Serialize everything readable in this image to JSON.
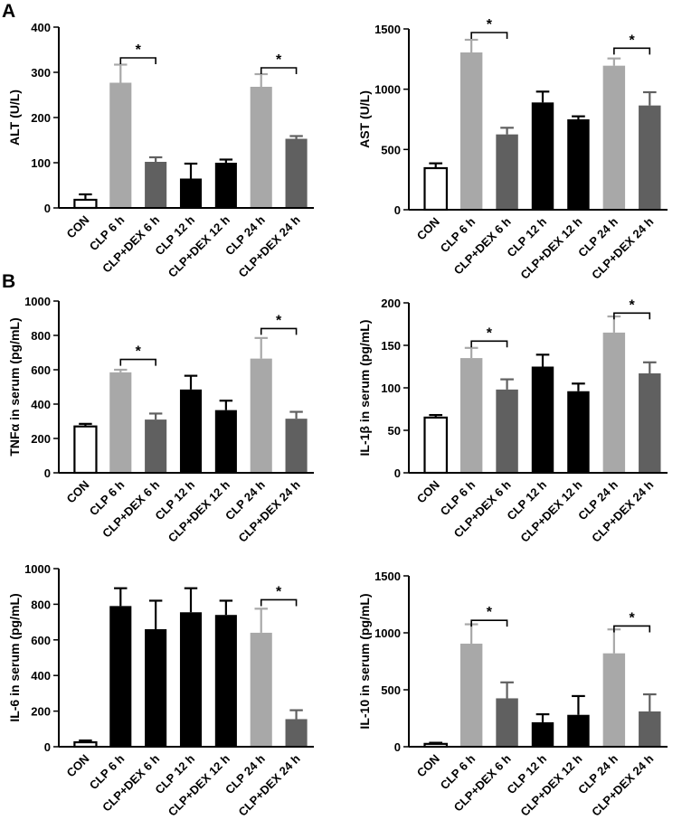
{
  "panels": [
    {
      "id": "A",
      "label": "A"
    },
    {
      "id": "B",
      "label": "B"
    }
  ],
  "chart_data": [
    {
      "type": "bar",
      "panel": "A",
      "ylabel": "ALT (U/L)",
      "ylim": [
        0,
        400
      ],
      "yticks": [
        0,
        100,
        200,
        300,
        400
      ],
      "categories": [
        "CON",
        "CLP 6 h",
        "CLP+DEX 6 h",
        "CLP 12 h",
        "CLP+DEX 12 h",
        "CLP 24 h",
        "CLP+DEX 24 h"
      ],
      "values": [
        18,
        277,
        102,
        65,
        100,
        268,
        153
      ],
      "errors": [
        12,
        40,
        10,
        33,
        7,
        28,
        6
      ],
      "colors": [
        "#ffffff",
        "#a8a8a8",
        "#606060",
        "#000000",
        "#000000",
        "#a8a8a8",
        "#606060"
      ],
      "significance": [
        {
          "from": 1,
          "to": 2,
          "y": 332,
          "label": "*"
        },
        {
          "from": 5,
          "to": 6,
          "y": 310,
          "label": "*"
        }
      ]
    },
    {
      "type": "bar",
      "panel": "A",
      "ylabel": "AST (U/L)",
      "ylim": [
        0,
        1500
      ],
      "yticks": [
        0,
        500,
        1000,
        1500
      ],
      "categories": [
        "CON",
        "CLP 6 h",
        "CLP+DEX 6 h",
        "CLP 12 h",
        "CLP+DEX 12 h",
        "CLP 24 h",
        "CLP+DEX 24 h"
      ],
      "values": [
        345,
        1305,
        625,
        890,
        750,
        1195,
        865
      ],
      "errors": [
        40,
        105,
        55,
        90,
        25,
        60,
        110
      ],
      "colors": [
        "#ffffff",
        "#a8a8a8",
        "#606060",
        "#000000",
        "#000000",
        "#a8a8a8",
        "#606060"
      ],
      "significance": [
        {
          "from": 1,
          "to": 2,
          "y": 1470,
          "label": "*"
        },
        {
          "from": 5,
          "to": 6,
          "y": 1340,
          "label": "*"
        }
      ]
    },
    {
      "type": "bar",
      "panel": "B",
      "ylabel": "TNFα in serum (pg/mL)",
      "ylim": [
        0,
        1000
      ],
      "yticks": [
        0,
        200,
        400,
        600,
        800,
        1000
      ],
      "categories": [
        "CON",
        "CLP 6 h",
        "CLP+DEX 6 h",
        "CLP 12 h",
        "CLP+DEX 12 h",
        "CLP 24 h",
        "CLP+DEX 24 h"
      ],
      "values": [
        270,
        585,
        310,
        485,
        365,
        665,
        315
      ],
      "errors": [
        15,
        15,
        35,
        80,
        55,
        120,
        40
      ],
      "colors": [
        "#ffffff",
        "#a8a8a8",
        "#606060",
        "#000000",
        "#000000",
        "#a8a8a8",
        "#606060"
      ],
      "significance": [
        {
          "from": 1,
          "to": 2,
          "y": 660,
          "label": "*"
        },
        {
          "from": 5,
          "to": 6,
          "y": 840,
          "label": "*"
        }
      ]
    },
    {
      "type": "bar",
      "panel": "B",
      "ylabel": "IL-1β in serum (pg/mL)",
      "ylim": [
        0,
        200
      ],
      "yticks": [
        0,
        50,
        100,
        150,
        200
      ],
      "categories": [
        "CON",
        "CLP 6 h",
        "CLP+DEX 6 h",
        "CLP 12 h",
        "CLP+DEX 12 h",
        "CLP 24 h",
        "CLP+DEX 24 h"
      ],
      "values": [
        65,
        135,
        98,
        125,
        96,
        165,
        117
      ],
      "errors": [
        3,
        12,
        12,
        14,
        9,
        19,
        13
      ],
      "colors": [
        "#ffffff",
        "#a8a8a8",
        "#606060",
        "#000000",
        "#000000",
        "#a8a8a8",
        "#606060"
      ],
      "significance": [
        {
          "from": 1,
          "to": 2,
          "y": 155,
          "label": "*"
        },
        {
          "from": 5,
          "to": 6,
          "y": 188,
          "label": "*"
        }
      ]
    },
    {
      "type": "bar",
      "panel": "B",
      "ylabel": "IL-6 in serum (pg/mL)",
      "ylim": [
        0,
        1000
      ],
      "yticks": [
        0,
        200,
        400,
        600,
        800,
        1000
      ],
      "categories": [
        "CON",
        "CLP 6 h",
        "CLP+DEX 6 h",
        "CLP 12 h",
        "CLP+DEX 12 h",
        "CLP 24 h",
        "CLP+DEX 24 h"
      ],
      "values": [
        25,
        790,
        660,
        755,
        740,
        640,
        155
      ],
      "errors": [
        10,
        100,
        160,
        135,
        80,
        135,
        50
      ],
      "colors": [
        "#ffffff",
        "#000000",
        "#000000",
        "#000000",
        "#000000",
        "#a8a8a8",
        "#606060"
      ],
      "significance": [
        {
          "from": 5,
          "to": 6,
          "y": 825,
          "label": "*"
        }
      ]
    },
    {
      "type": "bar",
      "panel": "B",
      "ylabel": "IL-10 in serum (pg/mL)",
      "ylim": [
        0,
        1500
      ],
      "yticks": [
        0,
        500,
        1000,
        1500
      ],
      "categories": [
        "CON",
        "CLP 6 h",
        "CLP+DEX 6 h",
        "CLP 12 h",
        "CLP+DEX 12 h",
        "CLP 24 h",
        "CLP+DEX 24 h"
      ],
      "values": [
        25,
        905,
        425,
        215,
        280,
        820,
        310
      ],
      "errors": [
        10,
        170,
        140,
        70,
        165,
        210,
        150
      ],
      "colors": [
        "#ffffff",
        "#a8a8a8",
        "#606060",
        "#000000",
        "#000000",
        "#a8a8a8",
        "#606060"
      ],
      "significance": [
        {
          "from": 1,
          "to": 2,
          "y": 1110,
          "label": "*"
        },
        {
          "from": 5,
          "to": 6,
          "y": 1060,
          "label": "*"
        }
      ]
    }
  ]
}
